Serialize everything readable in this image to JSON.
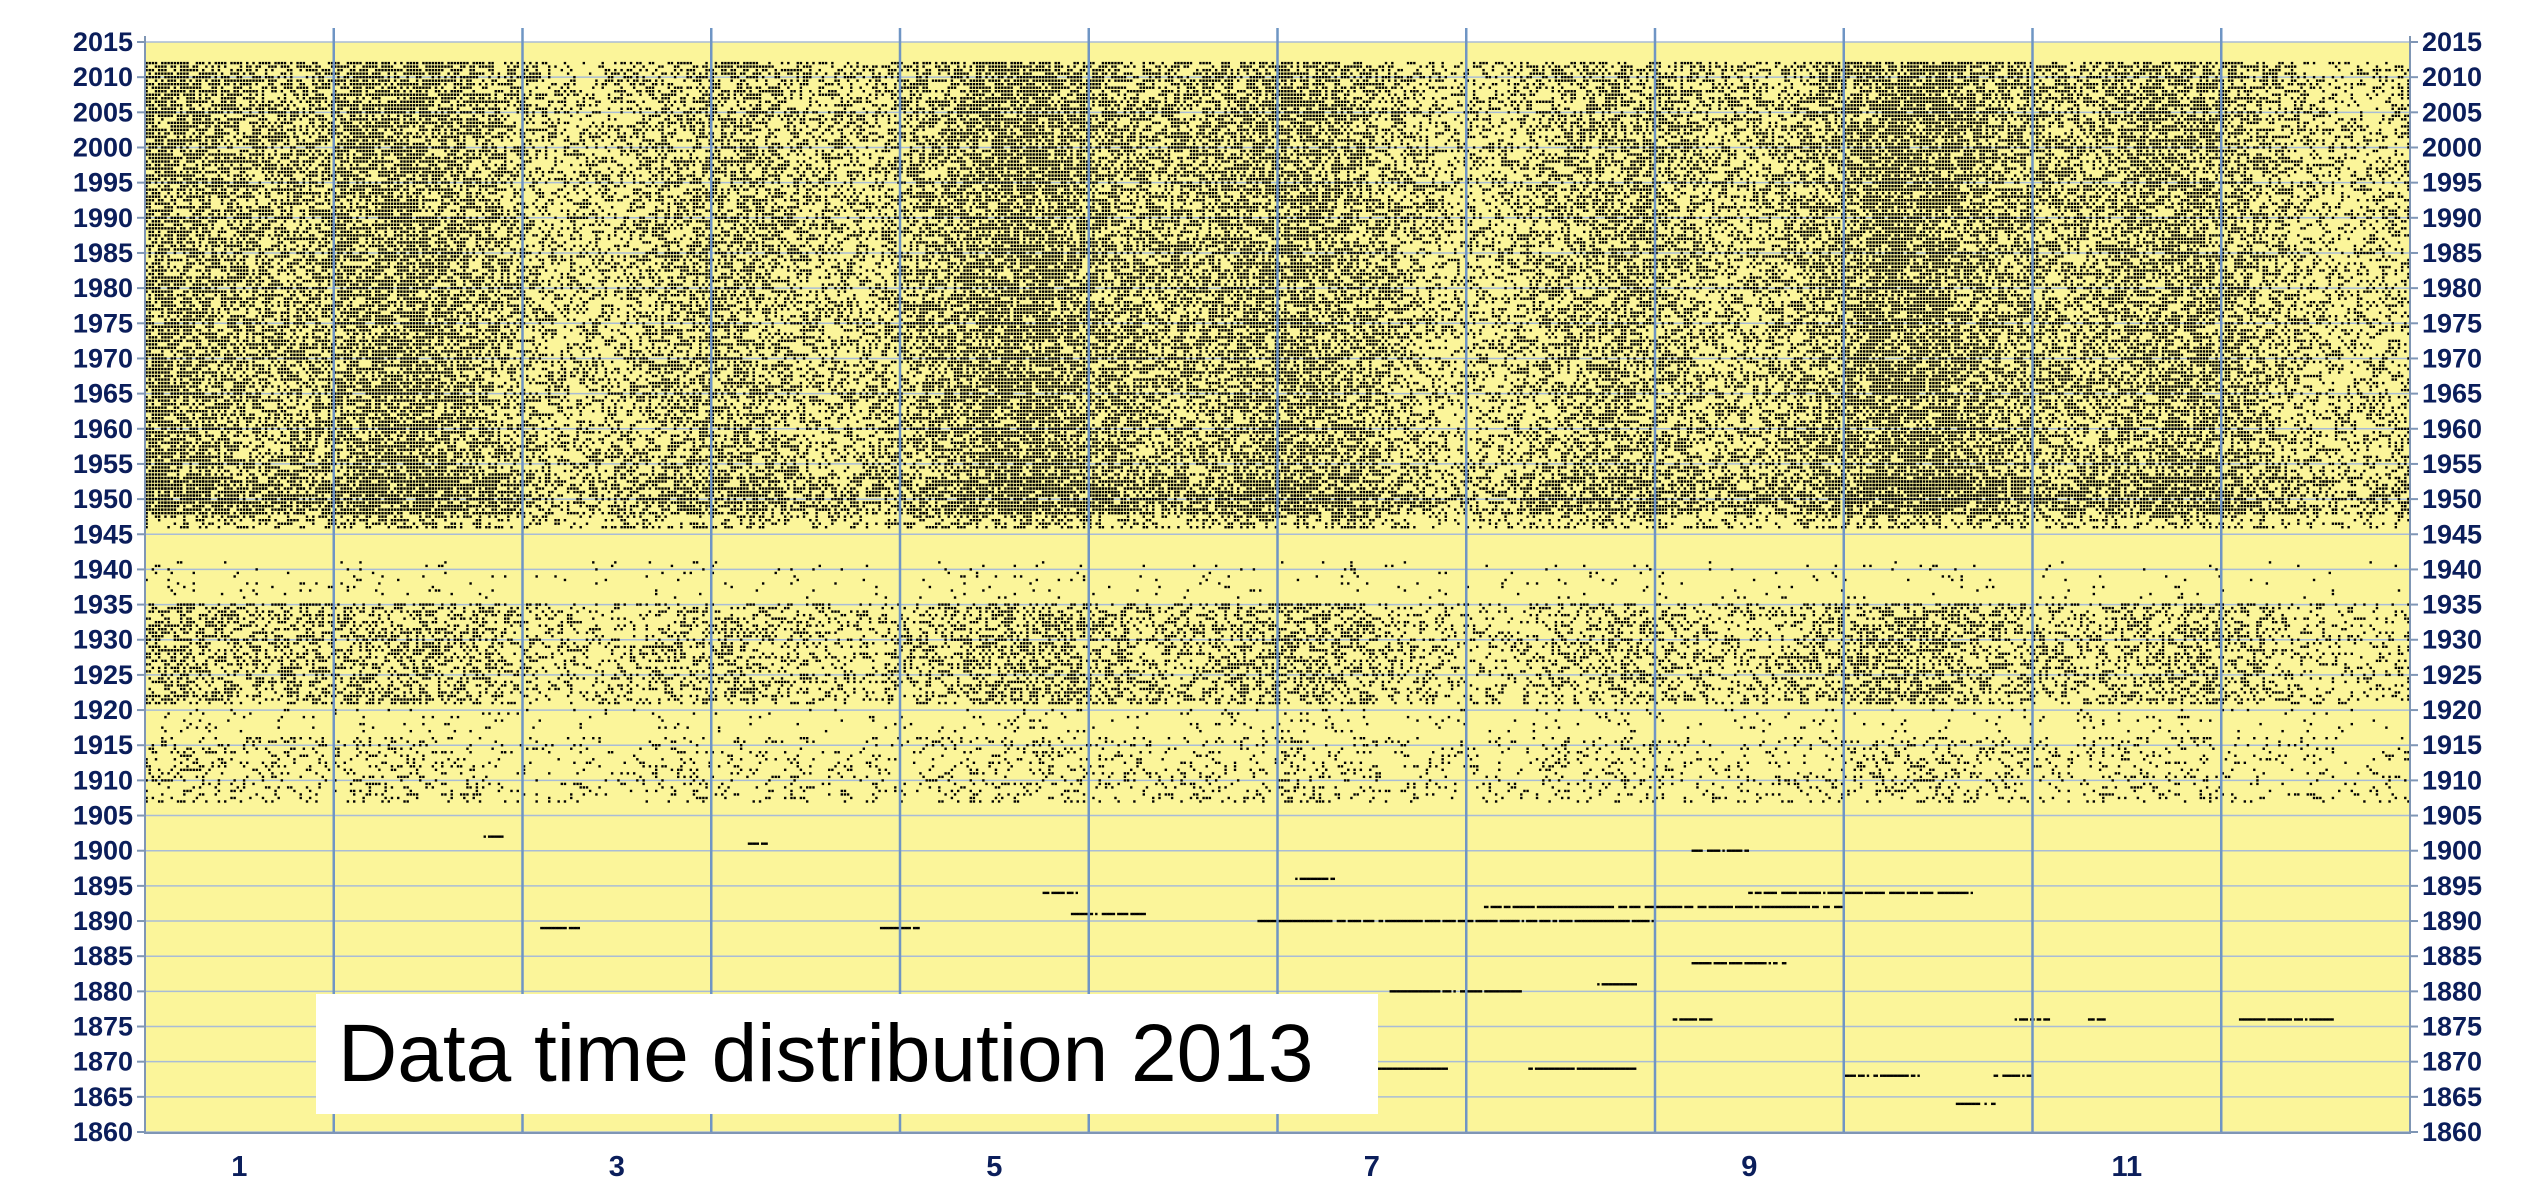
{
  "chart_data": {
    "type": "scatter",
    "title": "Data time distribution 2013",
    "xlabel": "",
    "ylabel": "",
    "x_tick_labels": [
      "1",
      "3",
      "5",
      "7",
      "9",
      "11"
    ],
    "x_tick_values": [
      1,
      3,
      5,
      7,
      9,
      11
    ],
    "xlim": [
      0.5,
      12.5
    ],
    "y_tick_labels": [
      "1860",
      "1865",
      "1870",
      "1875",
      "1880",
      "1885",
      "1890",
      "1895",
      "1900",
      "1905",
      "1910",
      "1915",
      "1920",
      "1925",
      "1930",
      "1935",
      "1940",
      "1945",
      "1950",
      "1955",
      "1960",
      "1965",
      "1970",
      "1975",
      "1980",
      "1985",
      "1990",
      "1995",
      "2000",
      "2005",
      "2010",
      "2015"
    ],
    "ylim": [
      1860,
      2015
    ],
    "grid": true,
    "legend": "none",
    "colors": {
      "plot_background": "#fbf59a",
      "grid_line": "#a9bcd6",
      "month_divider": "#6f95c4",
      "point": "#000000",
      "tick_text": "#0b1e5b"
    },
    "density_bands": [
      {
        "from_year": 1948,
        "to_year": 2012,
        "density": 0.72
      },
      {
        "from_year": 1946,
        "to_year": 1953,
        "density": 0.45
      },
      {
        "from_year": 1921,
        "to_year": 1935,
        "density": 0.5
      },
      {
        "from_year": 1907,
        "to_year": 1916,
        "density": 0.22
      },
      {
        "from_year": 1936,
        "to_year": 1941,
        "density": 0.05
      },
      {
        "from_year": 1917,
        "to_year": 1920,
        "density": 0.08
      }
    ],
    "sparse_clusters": [
      {
        "x_start": 5.25,
        "x_end": 5.45,
        "year": 1894
      },
      {
        "x_start": 5.4,
        "x_end": 5.8,
        "year": 1891
      },
      {
        "x_start": 6.4,
        "x_end": 8.5,
        "year": 1890
      },
      {
        "x_start": 7.6,
        "x_end": 9.5,
        "year": 1892
      },
      {
        "x_start": 9.0,
        "x_end": 10.2,
        "year": 1894
      },
      {
        "x_start": 2.6,
        "x_end": 2.8,
        "year": 1889
      },
      {
        "x_start": 4.4,
        "x_end": 4.6,
        "year": 1889
      },
      {
        "x_start": 7.1,
        "x_end": 7.8,
        "year": 1880
      },
      {
        "x_start": 8.2,
        "x_end": 8.4,
        "year": 1881
      },
      {
        "x_start": 8.7,
        "x_end": 9.2,
        "year": 1884
      },
      {
        "x_start": 8.6,
        "x_end": 8.8,
        "year": 1876
      },
      {
        "x_start": 10.4,
        "x_end": 10.6,
        "year": 1876
      },
      {
        "x_start": 10.8,
        "x_end": 10.9,
        "year": 1876
      },
      {
        "x_start": 11.6,
        "x_end": 12.1,
        "year": 1876
      },
      {
        "x_start": 7.0,
        "x_end": 7.4,
        "year": 1869
      },
      {
        "x_start": 7.8,
        "x_end": 8.4,
        "year": 1869
      },
      {
        "x_start": 9.5,
        "x_end": 9.9,
        "year": 1868
      },
      {
        "x_start": 10.3,
        "x_end": 10.5,
        "year": 1868
      },
      {
        "x_start": 10.1,
        "x_end": 10.3,
        "year": 1864
      },
      {
        "x_start": 8.7,
        "x_end": 9.0,
        "year": 1900
      },
      {
        "x_start": 2.3,
        "x_end": 2.4,
        "year": 1902
      },
      {
        "x_start": 3.7,
        "x_end": 3.8,
        "year": 1901
      },
      {
        "x_start": 6.6,
        "x_end": 6.8,
        "year": 1896
      }
    ]
  }
}
